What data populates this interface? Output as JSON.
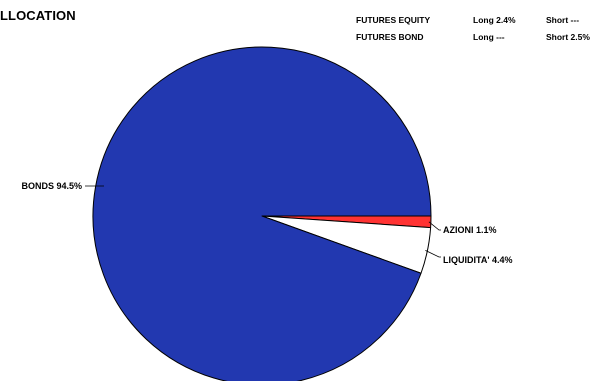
{
  "title": "LLOCATION",
  "futures": {
    "rows": [
      {
        "name": "FUTURES EQUITY",
        "long": "Long 2.4%",
        "short": "Short ---"
      },
      {
        "name": "FUTURES BOND",
        "long": "Long ---",
        "short": "Short 2.5%"
      }
    ]
  },
  "chart_data": {
    "type": "pie",
    "title": "",
    "slices": [
      {
        "label": "AZIONI 1.1%",
        "value": 1.1,
        "color": "#ff3333"
      },
      {
        "label": "LIQUIDITA' 4.4%",
        "value": 4.4,
        "color": "#ffffff"
      },
      {
        "label": "BONDS 94.5%",
        "value": 94.5,
        "color": "#2238b0"
      }
    ],
    "start_direction": "right",
    "order": "clockwise",
    "legend": "none",
    "labels": "outside-with-leader-lines"
  }
}
